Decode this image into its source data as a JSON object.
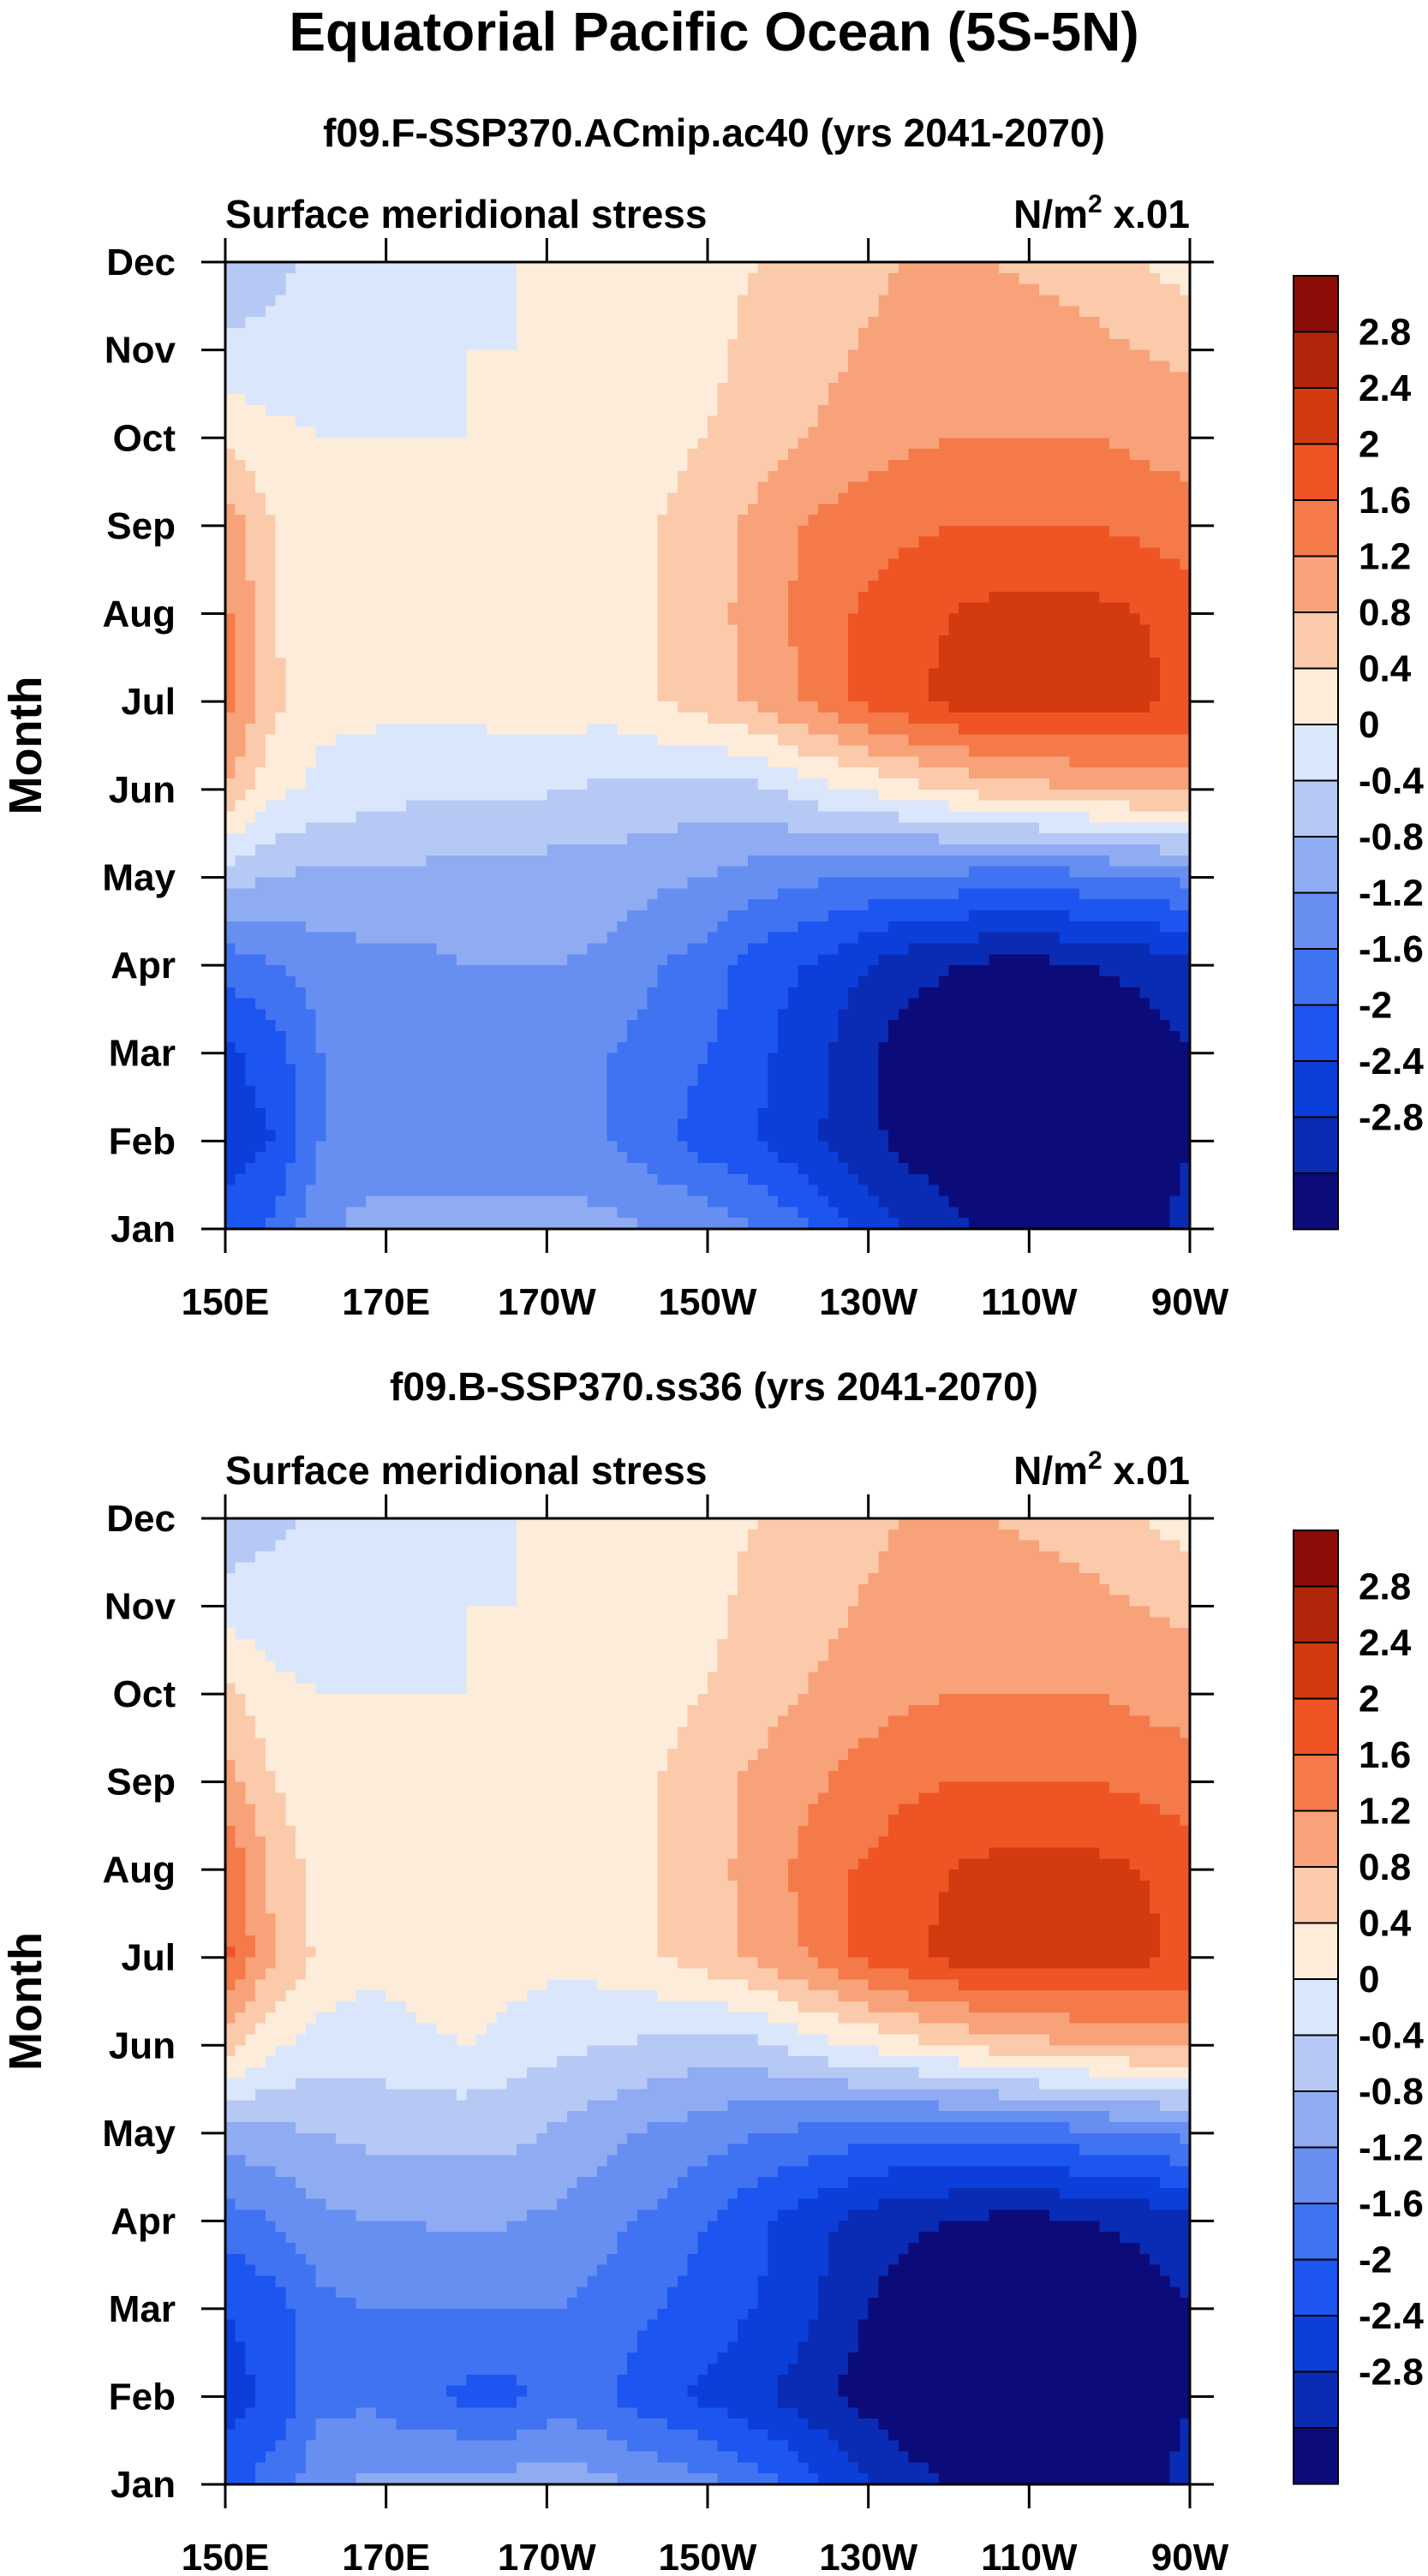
{
  "header": {
    "title": "Equatorial Pacific Ocean (5S-5N)"
  },
  "common": {
    "panel_left_label": "Surface meridional stress",
    "panel_right_label_base": "N/m",
    "panel_right_label_sup": "2",
    "panel_right_label_suffix": " x.01",
    "ylabel": "Month"
  },
  "colors": {
    "fills": [
      "#0b0b7a",
      "#0a2bb4",
      "#0c3ed9",
      "#1c55f0",
      "#3f73f2",
      "#678ff2",
      "#8fabf2",
      "#b6c9f5",
      "#dae6fb",
      "#fdecd9",
      "#fbcaab",
      "#f8a27a",
      "#f47a4a",
      "#ef5424",
      "#d23a10",
      "#b2260b",
      "#8b0d08"
    ]
  },
  "chart_data": [
    {
      "type": "heatmap",
      "title": "f09.F-SSP370.ACmip.ac40 (yrs 2041-2070)",
      "xlabel": "",
      "ylabel": "Month",
      "x_tick_labels": [
        "150E",
        "170E",
        "170W",
        "150W",
        "130W",
        "110W",
        "90W"
      ],
      "x_ticks_deg_east": [
        150,
        170,
        190,
        210,
        230,
        250,
        270
      ],
      "xlim_deg_east": [
        150,
        270
      ],
      "y_tick_labels": [
        "Jan",
        "Feb",
        "Mar",
        "Apr",
        "May",
        "Jun",
        "Jul",
        "Aug",
        "Sep",
        "Oct",
        "Nov",
        "Dec"
      ],
      "colorbar_levels": [
        "2.8",
        "2.4",
        "2",
        "1.6",
        "1.2",
        "0.8",
        "0.4",
        "0",
        "-0.4",
        "-0.8",
        "-1.2",
        "-1.6",
        "-2",
        "-2.4",
        "-2.8"
      ],
      "grid_lon_deg_east": [
        150,
        156,
        162,
        168,
        174,
        180,
        186,
        192,
        198,
        204,
        210,
        216,
        222,
        228,
        234,
        240,
        246,
        252,
        258,
        264,
        270
      ],
      "values_by_month": [
        [
          -1.9,
          -1.5,
          -0.9,
          -0.6,
          -0.6,
          -0.6,
          -0.6,
          -0.6,
          -0.7,
          -0.8,
          -0.9,
          -1.2,
          -1.5,
          -2.0,
          -2.4,
          -2.7,
          -2.9,
          -3.0,
          -3.0,
          -2.9,
          -2.7
        ],
        [
          -2.2,
          -2.0,
          -1.2,
          -1.1,
          -1.1,
          -1.1,
          -1.1,
          -1.1,
          -1.2,
          -1.5,
          -1.8,
          -2.0,
          -2.3,
          -2.6,
          -2.9,
          -3.1,
          -3.1,
          -3.1,
          -3.1,
          -3.0,
          -2.8
        ],
        [
          -2.1,
          -1.8,
          -1.2,
          -1.2,
          -1.2,
          -1.2,
          -1.2,
          -1.2,
          -1.2,
          -1.4,
          -1.6,
          -1.9,
          -2.2,
          -2.6,
          -3.0,
          -3.1,
          -3.1,
          -3.1,
          -3.1,
          -3.0,
          -2.8
        ],
        [
          -1.5,
          -1.2,
          -1.0,
          -0.9,
          -0.9,
          -0.8,
          -0.8,
          -0.8,
          -0.9,
          -1.2,
          -1.4,
          -1.8,
          -2.0,
          -2.3,
          -2.6,
          -2.8,
          -2.9,
          -2.9,
          -2.8,
          -2.7,
          -2.5
        ],
        [
          -0.2,
          -0.4,
          -0.5,
          -0.5,
          -0.5,
          -0.6,
          -0.6,
          -0.6,
          -0.6,
          -0.7,
          -0.8,
          -1.0,
          -1.1,
          -1.2,
          -1.3,
          -1.3,
          -1.4,
          -1.4,
          -1.3,
          -1.2,
          -1.1
        ],
        [
          1.2,
          0.5,
          0.3,
          0.2,
          0.1,
          0.1,
          0.1,
          0.0,
          -0.1,
          -0.1,
          -0.2,
          -0.1,
          0.2,
          0.4,
          0.6,
          0.8,
          1.0,
          1.1,
          1.2,
          1.3,
          1.3
        ],
        [
          1.8,
          0.9,
          0.5,
          0.5,
          0.5,
          0.5,
          0.6,
          0.6,
          0.6,
          0.8,
          1.0,
          1.3,
          1.6,
          2.0,
          2.3,
          2.5,
          2.6,
          2.6,
          2.6,
          2.5,
          2.3
        ],
        [
          1.7,
          0.8,
          0.5,
          0.5,
          0.5,
          0.5,
          0.6,
          0.6,
          0.6,
          0.8,
          1.0,
          1.4,
          1.7,
          2.0,
          2.2,
          2.4,
          2.5,
          2.5,
          2.5,
          2.4,
          2.2
        ],
        [
          1.5,
          0.8,
          0.5,
          0.5,
          0.5,
          0.5,
          0.6,
          0.6,
          0.6,
          0.8,
          1.0,
          1.3,
          1.6,
          1.8,
          1.9,
          2.0,
          2.0,
          2.0,
          2.0,
          1.9,
          1.8
        ],
        [
          0.7,
          0.5,
          0.4,
          0.4,
          0.4,
          0.4,
          0.5,
          0.5,
          0.6,
          0.7,
          0.8,
          1.0,
          1.2,
          1.4,
          1.5,
          1.6,
          1.6,
          1.6,
          1.6,
          1.5,
          1.4
        ],
        [
          0.1,
          0.1,
          0.2,
          0.3,
          0.3,
          0.4,
          0.4,
          0.4,
          0.5,
          0.6,
          0.7,
          0.9,
          1.0,
          1.2,
          1.3,
          1.4,
          1.4,
          1.4,
          1.3,
          1.2,
          1.1
        ],
        [
          -0.3,
          -0.1,
          0.1,
          0.2,
          0.3,
          0.3,
          0.4,
          0.4,
          0.5,
          0.6,
          0.7,
          0.8,
          1.0,
          1.1,
          1.2,
          1.2,
          1.2,
          1.1,
          1.0,
          0.8,
          0.6
        ]
      ]
    },
    {
      "type": "heatmap",
      "title": "f09.B-SSP370.ss36 (yrs 2041-2070)",
      "xlabel": "",
      "ylabel": "Month",
      "x_tick_labels": [
        "150E",
        "170E",
        "170W",
        "150W",
        "130W",
        "110W",
        "90W"
      ],
      "x_ticks_deg_east": [
        150,
        170,
        190,
        210,
        230,
        250,
        270
      ],
      "xlim_deg_east": [
        150,
        270
      ],
      "y_tick_labels": [
        "Jan",
        "Feb",
        "Mar",
        "Apr",
        "May",
        "Jun",
        "Jul",
        "Aug",
        "Sep",
        "Oct",
        "Nov",
        "Dec"
      ],
      "colorbar_levels": [
        "2.8",
        "2.4",
        "2",
        "1.6",
        "1.2",
        "0.8",
        "0.4",
        "0",
        "-0.4",
        "-0.8",
        "-1.2",
        "-1.6",
        "-2",
        "-2.4",
        "-2.8"
      ],
      "grid_lon_deg_east": [
        150,
        156,
        162,
        168,
        174,
        180,
        186,
        192,
        198,
        204,
        210,
        216,
        222,
        228,
        234,
        240,
        246,
        252,
        258,
        264,
        270
      ],
      "values_by_month": [
        [
          -1.8,
          -1.4,
          -0.9,
          -0.7,
          -0.7,
          -0.6,
          -0.6,
          -0.6,
          -0.7,
          -0.9,
          -1.1,
          -1.4,
          -1.8,
          -2.2,
          -2.6,
          -2.8,
          -2.9,
          -3.0,
          -3.0,
          -2.9,
          -2.7
        ],
        [
          -2.2,
          -1.9,
          -1.3,
          -1.3,
          -1.5,
          -1.7,
          -1.7,
          -1.4,
          -1.6,
          -1.9,
          -2.1,
          -2.3,
          -2.6,
          -2.9,
          -3.1,
          -3.2,
          -3.2,
          -3.1,
          -3.1,
          -3.0,
          -2.8
        ],
        [
          -2.0,
          -1.8,
          -1.3,
          -1.2,
          -1.2,
          -1.2,
          -1.2,
          -1.2,
          -1.4,
          -1.6,
          -1.8,
          -2.0,
          -2.3,
          -2.7,
          -3.0,
          -3.1,
          -3.1,
          -3.1,
          -3.1,
          -3.0,
          -2.8
        ],
        [
          -1.4,
          -1.2,
          -0.9,
          -0.8,
          -0.8,
          -0.7,
          -0.8,
          -0.9,
          -1.1,
          -1.3,
          -1.6,
          -1.9,
          -2.2,
          -2.5,
          -2.7,
          -2.8,
          -2.9,
          -2.9,
          -2.8,
          -2.7,
          -2.5
        ],
        [
          -0.6,
          -0.5,
          -0.4,
          -0.3,
          -0.3,
          -0.3,
          -0.3,
          -0.5,
          -0.7,
          -0.9,
          -1.0,
          -1.2,
          -1.3,
          -1.4,
          -1.5,
          -1.5,
          -1.5,
          -1.4,
          -1.3,
          -1.2,
          -1.1
        ],
        [
          1.0,
          0.5,
          0.2,
          0.2,
          0.3,
          0.4,
          0.2,
          0.1,
          0.0,
          -0.1,
          -0.2,
          -0.1,
          0.2,
          0.4,
          0.6,
          0.8,
          1.0,
          1.1,
          1.2,
          1.3,
          1.3
        ],
        [
          2.1,
          1.2,
          0.7,
          0.5,
          0.6,
          0.8,
          0.6,
          0.5,
          0.6,
          0.8,
          1.0,
          1.3,
          1.6,
          2.0,
          2.3,
          2.5,
          2.6,
          2.6,
          2.6,
          2.5,
          2.3
        ],
        [
          2.0,
          1.1,
          0.6,
          0.5,
          0.5,
          0.5,
          0.5,
          0.5,
          0.6,
          0.8,
          1.0,
          1.4,
          1.7,
          2.0,
          2.2,
          2.4,
          2.5,
          2.5,
          2.5,
          2.4,
          2.2
        ],
        [
          1.4,
          0.8,
          0.5,
          0.5,
          0.5,
          0.5,
          0.5,
          0.5,
          0.6,
          0.8,
          1.0,
          1.3,
          1.5,
          1.7,
          1.9,
          2.0,
          2.0,
          2.0,
          2.0,
          1.9,
          1.8
        ],
        [
          0.9,
          0.5,
          0.4,
          0.4,
          0.4,
          0.4,
          0.5,
          0.5,
          0.6,
          0.7,
          0.8,
          1.0,
          1.2,
          1.4,
          1.5,
          1.6,
          1.6,
          1.6,
          1.6,
          1.5,
          1.4
        ],
        [
          0.2,
          0.2,
          0.2,
          0.3,
          0.3,
          0.4,
          0.4,
          0.4,
          0.5,
          0.6,
          0.7,
          0.9,
          1.0,
          1.2,
          1.3,
          1.4,
          1.4,
          1.4,
          1.3,
          1.2,
          1.1
        ],
        [
          -0.3,
          -0.1,
          0.1,
          0.2,
          0.3,
          0.3,
          0.4,
          0.4,
          0.5,
          0.6,
          0.7,
          0.8,
          1.0,
          1.1,
          1.2,
          1.2,
          1.2,
          1.1,
          1.0,
          0.8,
          0.6
        ]
      ]
    }
  ]
}
